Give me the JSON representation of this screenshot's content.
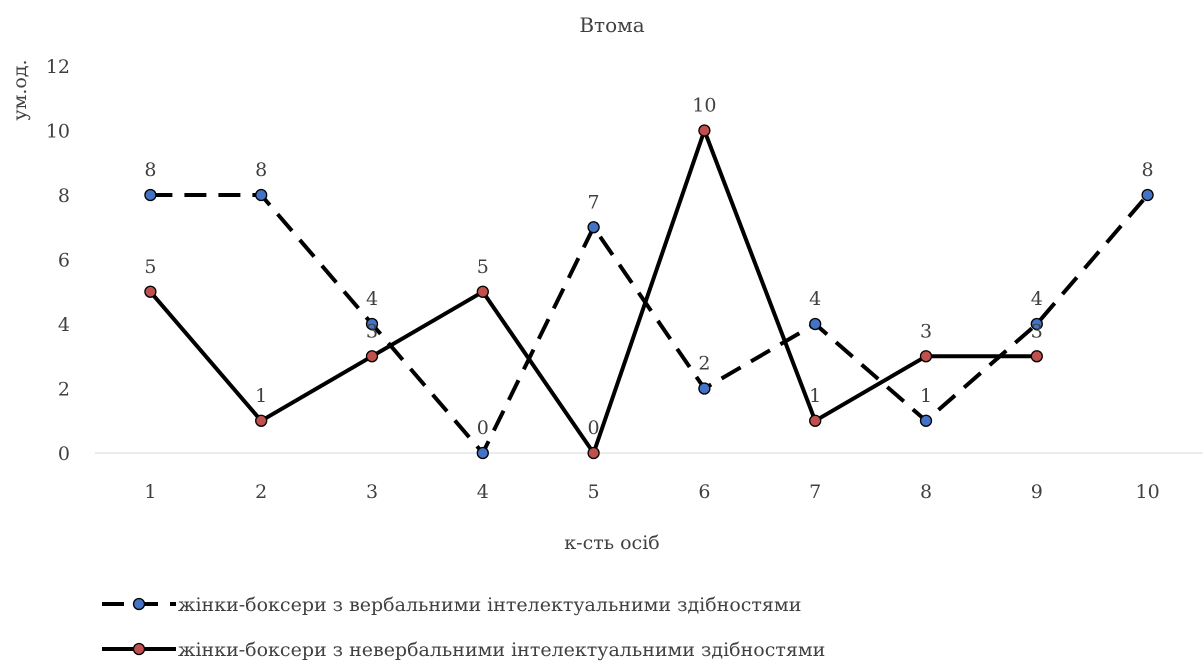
{
  "chart_data": {
    "type": "line",
    "title": "Втома",
    "xlabel": "к-сть осіб",
    "ylabel": "ум.од.",
    "categories": [
      "1",
      "2",
      "3",
      "4",
      "5",
      "6",
      "7",
      "8",
      "9",
      "10"
    ],
    "ylim": [
      0,
      12
    ],
    "yticks": [
      "0",
      "2",
      "4",
      "6",
      "8",
      "10",
      "12"
    ],
    "grid": false,
    "legend_position": "bottom-left",
    "series": [
      {
        "name": "жінки-боксери з вербальними інтелектуальними здібностями",
        "values": [
          8,
          8,
          4,
          0,
          7,
          2,
          4,
          1,
          4,
          8
        ],
        "line_style": "dashed",
        "line_color": "#000000",
        "marker_color": "#4472C4"
      },
      {
        "name": "жінки-боксери з невербальними інтелектуальними здібностями",
        "values": [
          5,
          1,
          3,
          5,
          0,
          10,
          1,
          3,
          3,
          null
        ],
        "line_style": "solid",
        "line_color": "#000000",
        "marker_color": "#C0504D"
      }
    ]
  }
}
